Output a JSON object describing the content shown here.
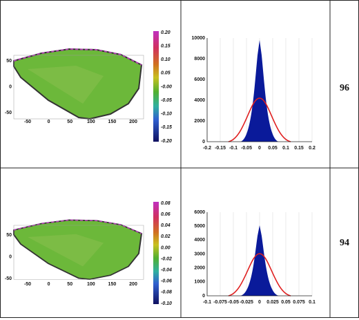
{
  "table": {
    "rows": [
      {
        "map": {
          "yticks": [
            "50",
            "0",
            "-50"
          ],
          "xticks": [
            "-50",
            "0",
            "50",
            "100",
            "150",
            "200"
          ]
        },
        "colorbar": [
          "0.20",
          "0.15",
          "0.10",
          "0.05",
          "-0.00",
          "-0.05",
          "-0.10",
          "-0.15",
          "-0.20"
        ],
        "histogram": {
          "yticks": [
            "10000",
            "8000",
            "6000",
            "4000",
            "2000",
            "0"
          ],
          "xticks": [
            "-0.2",
            "-0.15",
            "-0.1",
            "-0.05",
            "0",
            "0.05",
            "0.1",
            "0.15",
            "0.2"
          ]
        },
        "score": "96"
      },
      {
        "map": {
          "yticks": [
            "50",
            "0",
            "-50"
          ],
          "xticks": [
            "-50",
            "0",
            "50",
            "100",
            "150",
            "200"
          ]
        },
        "colorbar": [
          "0.08",
          "0.06",
          "0.04",
          "0.02",
          "0.00",
          "-0.02",
          "-0.04",
          "-0.06",
          "-0.08",
          "-0.10"
        ],
        "histogram": {
          "yticks": [
            "6000",
            "5000",
            "4000",
            "3000",
            "2000",
            "1000",
            "0"
          ],
          "xticks": [
            "-0.1",
            "-0.075",
            "-0.05",
            "-0.025",
            "0",
            "0.025",
            "0.05",
            "0.075",
            "0.1"
          ]
        },
        "score": "94"
      }
    ]
  }
}
